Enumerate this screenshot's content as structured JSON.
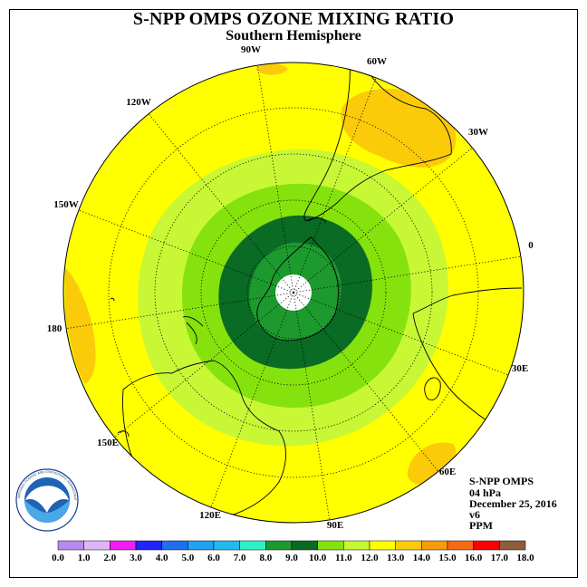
{
  "header": {
    "title": "S-NPP OMPS OZONE MIXING RATIO",
    "subtitle": "Southern Hemisphere"
  },
  "info": {
    "instrument": "S-NPP OMPS",
    "level": "04 hPa",
    "date": "December 25, 2016",
    "version": "v6",
    "units": "PPM"
  },
  "logo": {
    "text": "NOAA",
    "ring_text": "NATIONAL OCEANIC AND ATMOSPHERIC ADMINISTRATION · U.S. DEPARTMENT OF COMMERCE"
  },
  "longitude_labels": [
    {
      "text": "90W"
    },
    {
      "text": "60W"
    },
    {
      "text": "30W"
    },
    {
      "text": "0"
    },
    {
      "text": "30E"
    },
    {
      "text": "60E"
    },
    {
      "text": "90E"
    },
    {
      "text": "120E"
    },
    {
      "text": "150E"
    },
    {
      "text": "180"
    },
    {
      "text": "150W"
    },
    {
      "text": "120W"
    }
  ],
  "colorbar": {
    "labels": [
      "0.0",
      "1.0",
      "2.0",
      "3.0",
      "4.0",
      "5.0",
      "6.0",
      "7.0",
      "8.0",
      "9.0",
      "10.0",
      "11.0",
      "12.0",
      "13.0",
      "14.0",
      "15.0",
      "16.0",
      "17.0",
      "18.0"
    ],
    "colors": [
      "#b987f1",
      "#e0b4f7",
      "#f21df2",
      "#2323ff",
      "#1e6fef",
      "#22a0f2",
      "#1fbcf0",
      "#2cf2c8",
      "#1c9a2e",
      "#0a6b24",
      "#86e20c",
      "#c8f736",
      "#ffff00",
      "#fbcb0a",
      "#f79b06",
      "#f56a14",
      "#ff0000",
      "#8e5d3a"
    ]
  },
  "colors": {
    "background_field": "#ffff00",
    "orange_patch": "#fbcb0a",
    "light_green_ring": "#c8f736",
    "green_ring": "#86e20c",
    "dark_green_ring": "#0a6b24",
    "medium_green_core": "#1c9a2e",
    "pole": "#ffffff"
  }
}
